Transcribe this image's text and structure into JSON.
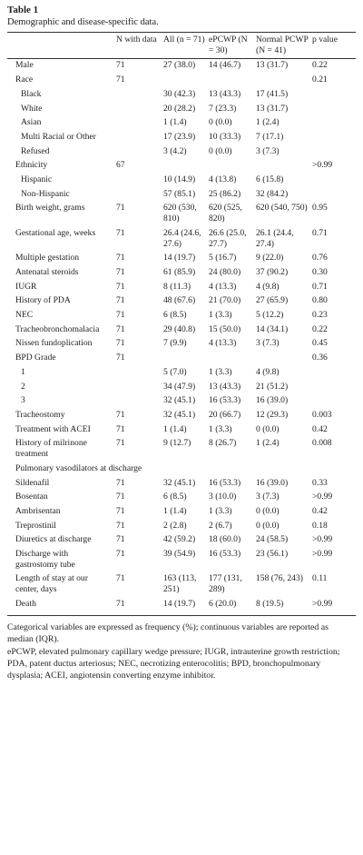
{
  "caption": {
    "title": "Table 1",
    "subtitle": "Demographic and disease-specific data."
  },
  "table": {
    "headers": [
      "N with data",
      "All (n = 71)",
      "ePCWP (N = 30)",
      "Normal PCWP (N = 41)",
      "p value"
    ],
    "rows": [
      [
        "Male",
        "71",
        "27 (38.0)",
        "14 (46.7)",
        "13 (31.7)",
        "0.22"
      ],
      [
        "Race",
        "71",
        null,
        null,
        null,
        "0.21"
      ],
      [
        "Black",
        null,
        "30 (42.3)",
        "13 (43.3)",
        "17 (41.5)",
        null
      ],
      [
        "White",
        null,
        "20 (28.2)",
        "7 (23.3)",
        "13 (31.7)",
        null
      ],
      [
        "Asian",
        null,
        "1 (1.4)",
        "0 (0.0)",
        "1 (2.4)",
        null
      ],
      [
        "Multi Racial or Other",
        null,
        "17 (23.9)",
        "10 (33.3)",
        "7 (17.1)",
        null
      ],
      [
        "Refused",
        null,
        "3 (4.2)",
        "0 (0.0)",
        "3 (7.3)",
        null
      ],
      [
        "Ethnicity",
        "67",
        null,
        null,
        null,
        ">0.99"
      ],
      [
        "Hispanic",
        null,
        "10 (14.9)",
        "4 (13.8)",
        "6 (15.8)",
        null
      ],
      [
        "Non-Hispanic",
        null,
        "57 (85.1)",
        "25 (86.2)",
        "32 (84.2)",
        null
      ],
      [
        "Birth weight, grams",
        "71",
        "620 (530, 810)",
        "620 (525, 820)",
        "620 (540, 750)",
        "0.95"
      ],
      [
        "Gestational age, weeks",
        "71",
        "26.4 (24.6, 27.6)",
        "26.6 (25.0, 27.7)",
        "26.1 (24.4, 27.4)",
        "0.71"
      ],
      [
        "Multiple gestation",
        "71",
        "14 (19.7)",
        "5 (16.7)",
        "9 (22.0)",
        "0.76"
      ],
      [
        "Antenatal steroids",
        "71",
        "61 (85.9)",
        "24 (80.0)",
        "37 (90.2)",
        "0.30"
      ],
      [
        "IUGR",
        "71",
        "8 (11.3)",
        "4 (13.3)",
        "4 (9.8)",
        "0.71"
      ],
      [
        "History of PDA",
        "71",
        "48 (67.6)",
        "21 (70.0)",
        "27 (65.9)",
        "0.80"
      ],
      [
        "NEC",
        "71",
        "6 (8.5)",
        "1 (3.3)",
        "5 (12.2)",
        "0.23"
      ],
      [
        "Tracheobronchomalacia",
        "71",
        "29 (40.8)",
        "15 (50.0)",
        "14 (34.1)",
        "0.22"
      ],
      [
        "Nissen fundoplication",
        "71",
        "7 (9.9)",
        "4 (13.3)",
        "3 (7.3)",
        "0.45"
      ],
      [
        "BPD Grade",
        "71",
        null,
        null,
        null,
        "0.36"
      ],
      [
        "1",
        null,
        "5 (7.0)",
        "1 (3.3)",
        "4 (9.8)",
        null
      ],
      [
        "2",
        null,
        "34 (47.9)",
        "13 (43.3)",
        "21 (51.2)",
        null
      ],
      [
        "3",
        null,
        "32 (45.1)",
        "16 (53.3)",
        "16 (39.0)",
        null
      ],
      [
        "Tracheostomy",
        "71",
        "32 (45.1)",
        "20 (66.7)",
        "12 (29.3)",
        "0.003"
      ],
      [
        "Treatment with ACEI",
        "71",
        "1 (1.4)",
        "1 (3.3)",
        "0 (0.0)",
        "0.42"
      ],
      [
        "History of milrinone treatment",
        "71",
        "9 (12.7)",
        "8 (26.7)",
        "1 (2.4)",
        "0.008"
      ],
      [
        "Pulmonary vasodilators at discharge",
        null,
        null,
        null,
        null,
        null
      ],
      [
        "Sildenafil",
        "71",
        "32 (45.1)",
        "16 (53.3)",
        "16 (39.0)",
        "0.33"
      ],
      [
        "Bosentan",
        "71",
        "6 (8.5)",
        "3 (10.0)",
        "3 (7.3)",
        ">0.99"
      ],
      [
        "Ambrisentan",
        "71",
        "1 (1.4)",
        "1 (3.3)",
        "0 (0.0)",
        "0.42"
      ],
      [
        "Treprostinil",
        "71",
        "2 (2.8)",
        "2 (6.7)",
        "0 (0.0)",
        "0.18"
      ],
      [
        "Diuretics at discharge",
        "71",
        "42 (59.2)",
        "18 (60.0)",
        "24 (58.5)",
        ">0.99"
      ],
      [
        "Discharge with gastrostomy tube",
        "71",
        "39 (54.9)",
        "16 (53.3)",
        "23 (56.1)",
        ">0.99"
      ],
      [
        "Length of stay at our center, days",
        "71",
        "163 (113, 251)",
        "177 (131, 289)",
        "158 (76, 243)",
        "0.11"
      ],
      [
        "Death",
        "71",
        "14 (19.7)",
        "6 (20.0)",
        "8 (19.5)",
        ">0.99"
      ]
    ]
  },
  "notes": [
    "Categorical variables are expressed as frequency (%); continuous variables are reported as median (IQR).",
    "ePCWP, elevated pulmonary capillary wedge pressure; IUGR, intrauterine growth restriction; PDA, patent ductus arteriosus; NEC, necrotizing enterocolitis; BPD, bronchopulmonary dysplasia; ACEI, angiotensin converting enzyme inhibitor."
  ]
}
